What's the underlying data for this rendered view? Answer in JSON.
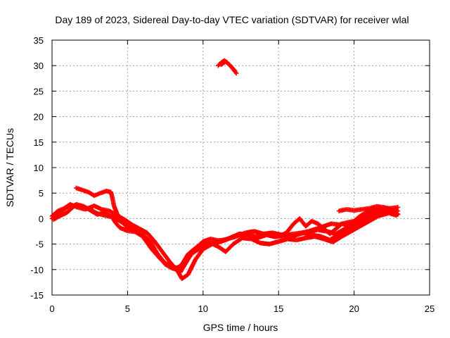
{
  "chart_data": {
    "type": "scatter",
    "title": "Day 189 of 2023, Sidereal Day-to-day VTEC variation (SDTVAR) for receiver wlal",
    "xlabel": "GPS time / hours",
    "ylabel": "SDTVAR / TECUs",
    "xlim": [
      0,
      25
    ],
    "ylim": [
      -15,
      35
    ],
    "xticks": [
      "0",
      "5",
      "10",
      "15",
      "20",
      "25"
    ],
    "yticks": [
      "-15",
      "-10",
      "-5",
      "0",
      "5",
      "10",
      "15",
      "20",
      "25",
      "30",
      "35"
    ],
    "grid": true,
    "marker": "plus",
    "color": "#ff0000",
    "series": [
      {
        "name": "track-1",
        "x": [
          0.0,
          0.3,
          0.6,
          1.0,
          1.5,
          2.0,
          2.5,
          3.0,
          3.5,
          4.0,
          4.5,
          5.0,
          5.5,
          6.0,
          6.5,
          7.0,
          7.5,
          8.0,
          8.5,
          9.0,
          9.5,
          10.0,
          10.5,
          11.0,
          11.5,
          12.0,
          12.5,
          13.0,
          13.5,
          14.0,
          14.5,
          15.0,
          15.5,
          16.0,
          16.5,
          17.0,
          17.5,
          18.0,
          18.5,
          19.0,
          19.5,
          20.0,
          20.5,
          21.0,
          21.5,
          22.0,
          22.5,
          22.9
        ],
        "y": [
          0.0,
          0.8,
          1.5,
          2.2,
          2.6,
          2.4,
          1.8,
          1.0,
          0.6,
          0.3,
          -0.5,
          -1.5,
          -2.2,
          -3.0,
          -5.0,
          -7.0,
          -8.8,
          -9.2,
          -10.5,
          -8.0,
          -5.8,
          -4.5,
          -4.0,
          -4.3,
          -4.2,
          -3.5,
          -3.0,
          -3.2,
          -3.5,
          -3.0,
          -3.3,
          -3.5,
          -3.2,
          -3.0,
          -2.8,
          -2.5,
          -2.0,
          -1.5,
          -1.0,
          -1.2,
          -0.8,
          -0.5,
          0.0,
          0.8,
          1.5,
          1.3,
          1.0,
          0.8
        ]
      },
      {
        "name": "track-2",
        "x": [
          0.0,
          0.4,
          0.8,
          1.2,
          1.7,
          2.2,
          2.8,
          3.3,
          3.8,
          4.2,
          4.8,
          5.3,
          5.8,
          6.3,
          6.8,
          7.3,
          7.8,
          8.3,
          8.6,
          9.0,
          9.5,
          10.0,
          10.6,
          11.2,
          11.8,
          12.4,
          13.0,
          13.6,
          14.2,
          14.8,
          15.4,
          16.0,
          16.6,
          17.2,
          17.8,
          18.4,
          19.0,
          19.6,
          20.2,
          20.8,
          21.4,
          22.0,
          22.6,
          22.9
        ],
        "y": [
          0.5,
          1.5,
          2.0,
          2.8,
          2.2,
          1.8,
          2.5,
          1.8,
          1.5,
          0.8,
          -0.2,
          -1.2,
          -2.0,
          -2.8,
          -4.5,
          -6.5,
          -8.5,
          -10.2,
          -11.8,
          -11.0,
          -8.0,
          -6.0,
          -5.0,
          -4.5,
          -3.8,
          -3.0,
          -3.5,
          -3.8,
          -3.2,
          -3.6,
          -3.0,
          -3.4,
          -2.8,
          -3.2,
          -3.5,
          -4.2,
          -3.0,
          -2.0,
          -1.0,
          0.0,
          1.0,
          1.8,
          1.2,
          0.9
        ]
      },
      {
        "name": "track-3",
        "x": [
          0.1,
          0.5,
          1.0,
          1.6,
          2.1,
          2.6,
          3.0,
          3.5,
          3.8,
          4.0,
          4.2,
          4.5,
          5.0,
          5.5,
          6.0,
          6.6,
          7.2,
          7.8,
          8.2,
          8.6,
          9.0,
          9.4,
          9.9,
          10.5,
          11.0,
          11.5,
          12.0,
          12.6,
          13.2,
          13.8,
          14.4,
          15.0,
          15.6,
          16.2,
          16.8,
          17.4,
          18.0,
          18.6,
          19.2,
          19.8,
          20.4,
          21.0,
          21.6,
          22.2,
          22.8
        ],
        "y": [
          -0.2,
          0.5,
          1.2,
          2.8,
          2.4,
          1.5,
          0.8,
          1.2,
          0.6,
          0.2,
          -0.8,
          -1.8,
          -2.4,
          -2.6,
          -3.5,
          -6.0,
          -8.0,
          -9.5,
          -10.0,
          -9.0,
          -7.0,
          -6.0,
          -5.0,
          -4.8,
          -5.5,
          -6.5,
          -5.0,
          -3.8,
          -4.0,
          -4.8,
          -5.0,
          -4.5,
          -4.0,
          -4.2,
          -3.8,
          -3.5,
          -4.0,
          -4.6,
          -3.5,
          -2.5,
          -1.5,
          -0.5,
          0.5,
          1.0,
          1.8
        ]
      },
      {
        "name": "track-4",
        "x": [
          1.6,
          2.0,
          2.4,
          2.8,
          3.2,
          3.6,
          3.9,
          4.0,
          4.1,
          4.3,
          4.6,
          5.0,
          5.5,
          6.0,
          6.5,
          7.0,
          7.5,
          8.0,
          8.4,
          8.8,
          9.2,
          9.6,
          10.0,
          10.5,
          11.0,
          11.6,
          12.2,
          12.8,
          13.4,
          14.0,
          14.6,
          15.2,
          15.8,
          16.4,
          17.0,
          17.6,
          18.2,
          18.8,
          19.4,
          20.0,
          20.6,
          21.2,
          21.8,
          22.4,
          22.9
        ],
        "y": [
          6.0,
          5.6,
          5.2,
          4.5,
          5.0,
          5.4,
          5.2,
          4.0,
          2.5,
          1.0,
          -0.5,
          -1.8,
          -2.4,
          -3.0,
          -4.5,
          -7.0,
          -9.0,
          -9.8,
          -9.5,
          -8.5,
          -7.0,
          -6.2,
          -5.5,
          -5.0,
          -4.5,
          -4.0,
          -3.5,
          -2.8,
          -2.5,
          -3.0,
          -2.8,
          -3.2,
          -3.6,
          -3.0,
          -2.6,
          -2.2,
          -2.5,
          -3.0,
          -2.0,
          -1.0,
          0.0,
          1.0,
          2.0,
          2.0,
          2.2
        ]
      },
      {
        "name": "track-5",
        "x": [
          14.8,
          15.2,
          15.6,
          16.0,
          16.4,
          16.8,
          17.2,
          17.6,
          18.0,
          18.4,
          18.8,
          19.2,
          19.6,
          20.0,
          20.4,
          20.8,
          21.2,
          21.6,
          22.0,
          22.4,
          22.8
        ],
        "y": [
          -3.0,
          -3.5,
          -2.5,
          -1.0,
          0.0,
          -1.5,
          -0.5,
          -1.0,
          -2.0,
          -3.0,
          -2.0,
          -1.0,
          -1.5,
          -0.5,
          0.5,
          1.2,
          1.5,
          2.2,
          1.8,
          1.0,
          0.6
        ]
      },
      {
        "name": "track-6",
        "x": [
          19.0,
          19.5,
          20.0,
          20.5,
          21.0,
          21.5,
          22.0,
          22.5,
          22.9
        ],
        "y": [
          1.5,
          1.8,
          1.6,
          1.8,
          2.0,
          2.4,
          2.2,
          1.8,
          1.5
        ]
      },
      {
        "name": "track-7",
        "x": [
          11.0,
          11.2,
          11.4,
          11.6,
          11.8,
          12.0,
          12.2
        ],
        "y": [
          30.0,
          30.6,
          31.0,
          30.6,
          30.0,
          29.3,
          28.5
        ]
      },
      {
        "name": "track-8",
        "x": [
          11.2,
          11.5,
          11.8,
          12.1
        ],
        "y": [
          30.2,
          30.8,
          30.0,
          29.0
        ]
      }
    ]
  }
}
